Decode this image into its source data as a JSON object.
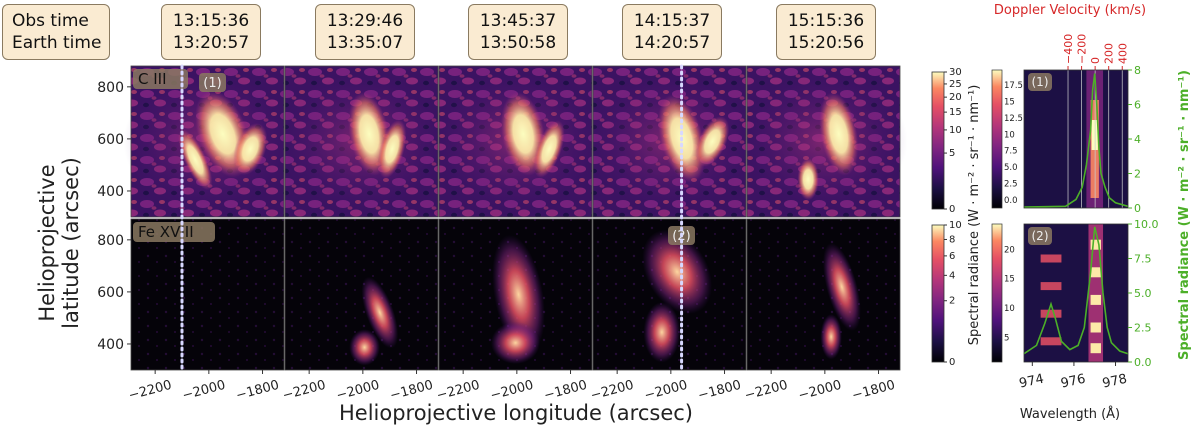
{
  "header": {
    "label_obs": "Obs time",
    "label_earth": "Earth time",
    "frames": [
      {
        "obs": "13:15:36",
        "earth": "13:20:57"
      },
      {
        "obs": "13:29:46",
        "earth": "13:35:07"
      },
      {
        "obs": "13:45:37",
        "earth": "13:50:58"
      },
      {
        "obs": "14:15:37",
        "earth": "14:20:57"
      },
      {
        "obs": "15:15:36",
        "earth": "15:20:56"
      }
    ]
  },
  "rows": [
    {
      "label": "C III",
      "marker": "(1)",
      "marker_frame": 0,
      "vmax": 30
    },
    {
      "label": "Fe XVIII",
      "marker": "(2)",
      "marker_frame": 3,
      "vmax": 10
    }
  ],
  "image_axes": {
    "xlabel": "Helioprojective longitude (arcsec)",
    "ylabel_line1": "Helioprojective",
    "ylabel_line2": "latitude (arcsec)",
    "xticks": [
      -2200,
      -2000,
      -1800
    ],
    "xrange": [
      -2290,
      -1720
    ],
    "yticks": [
      400,
      600,
      800
    ],
    "yrange": [
      300,
      880
    ]
  },
  "slit_lines": [
    {
      "frame": 0,
      "longitude": -2100
    },
    {
      "frame": 3,
      "longitude": -1960
    }
  ],
  "colorbars": {
    "label": "Spectral radiance (W · m⁻² · sr⁻¹ · nm⁻¹)",
    "top_ticks": [
      0,
      5,
      10,
      15,
      20,
      25,
      30
    ],
    "bottom_ticks": [
      0,
      2,
      4,
      6,
      8,
      10
    ]
  },
  "chart_data": [
    {
      "type": "heatmap",
      "title": "",
      "frames": [
        "13:15:36",
        "13:29:46",
        "13:45:37",
        "14:15:37",
        "15:15:36"
      ],
      "rows": [
        "C III",
        "Fe XVIII"
      ],
      "xlabel": "Helioprojective longitude (arcsec)",
      "ylabel": "Helioprojective latitude (arcsec)",
      "xlim": [
        -2290,
        -1720
      ],
      "ylim": [
        300,
        880
      ]
    },
    {
      "type": "line",
      "panel": "(1)",
      "xlabel": "Wavelength (Å)",
      "ylabel_right": "Spectral radiance (W · m⁻² · sr⁻¹ · nm⁻¹)",
      "xlim": [
        973.6,
        978.6
      ],
      "ylim": [
        0,
        8
      ],
      "yticks_right": [
        0,
        2,
        4,
        6,
        8
      ],
      "colorbar_ticks": [
        "0.0",
        "2.5",
        "5.0",
        "7.5",
        "10",
        "12.5",
        "15",
        "17.5"
      ],
      "series": [
        {
          "x": [
            973.6,
            975.6,
            976.1,
            976.4,
            976.6,
            976.8,
            976.9,
            977.0,
            977.1,
            977.2,
            977.3,
            977.5,
            977.7,
            978.0,
            978.6
          ],
          "values": [
            0.05,
            0.1,
            0.5,
            1.2,
            2.5,
            4.5,
            6.8,
            7.8,
            6.0,
            3.5,
            2.0,
            1.2,
            0.6,
            0.3,
            0.1
          ]
        }
      ]
    },
    {
      "type": "line",
      "panel": "(2)",
      "xlabel": "Wavelength (Å)",
      "ylabel_right": "Spectral radiance (W · m⁻² · sr⁻¹ · nm⁻¹)",
      "xlim": [
        973.6,
        978.6
      ],
      "ylim": [
        0,
        10
      ],
      "xticks": [
        974,
        976,
        978
      ],
      "yticks_right": [
        0.0,
        2.5,
        5.0,
        7.5,
        10.0
      ],
      "colorbar_ticks": [
        "5",
        "10",
        "15",
        "20"
      ],
      "series": [
        {
          "x": [
            973.6,
            974.2,
            974.6,
            974.9,
            975.1,
            975.4,
            975.8,
            976.2,
            976.5,
            976.8,
            977.0,
            977.2,
            977.4,
            977.6,
            977.8,
            978.2,
            978.6
          ],
          "values": [
            0.6,
            1.2,
            2.8,
            4.2,
            3.2,
            1.5,
            0.9,
            1.2,
            2.5,
            6.5,
            9.8,
            8.5,
            5.0,
            2.5,
            1.4,
            0.8,
            0.6
          ]
        }
      ]
    }
  ],
  "doppler": {
    "title": "Doppler Velocity (km/s)",
    "ticks": [
      -400,
      -200,
      0,
      200,
      400
    ],
    "rest_wavelength": 977.02
  },
  "colors": {
    "doppler": "#d62728",
    "green": "#4caf28",
    "dotted": "#d8d8ff",
    "label_bg": "#8a7860",
    "header_bg": "#faebd2"
  }
}
